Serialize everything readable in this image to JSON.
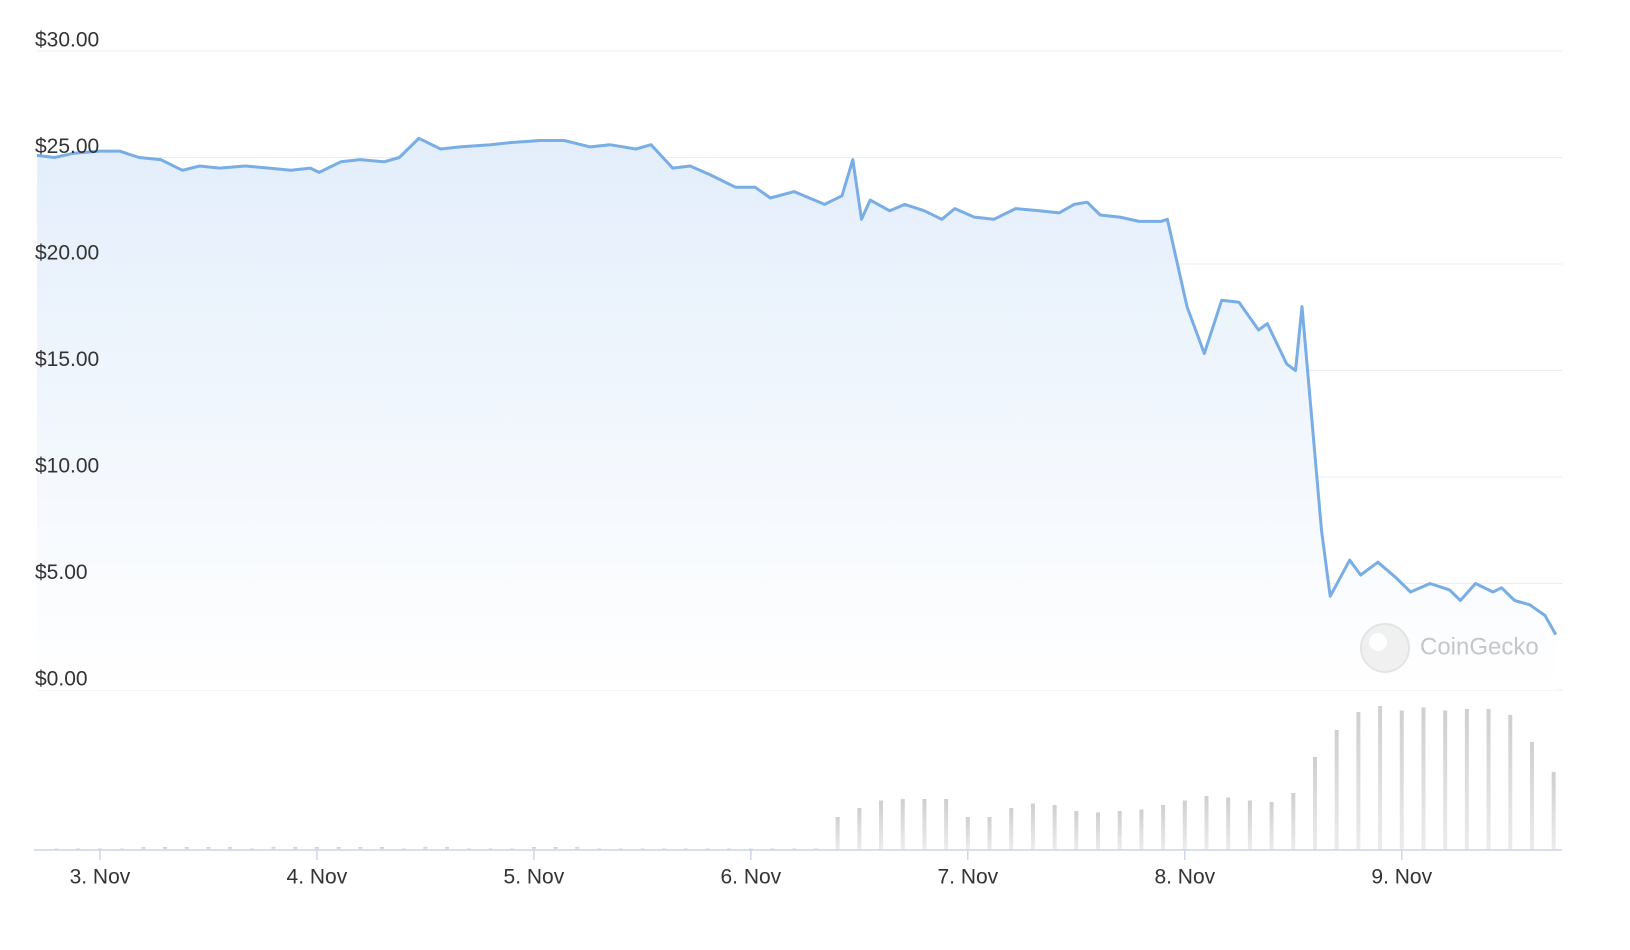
{
  "chart_data": [
    {
      "type": "line",
      "watermark": "CoinGecko",
      "color": "#78ade6",
      "grid": true,
      "x": [
        2.71,
        2.79,
        2.88,
        3.0,
        3.09,
        3.18,
        3.28,
        3.38,
        3.46,
        3.55,
        3.67,
        3.78,
        3.88,
        3.97,
        4.01,
        4.11,
        4.2,
        4.31,
        4.38,
        4.47,
        4.57,
        4.66,
        4.8,
        4.89,
        5.03,
        5.14,
        5.26,
        5.35,
        5.47,
        5.54,
        5.64,
        5.72,
        5.81,
        5.93,
        6.02,
        6.09,
        6.2,
        6.27,
        6.34,
        6.42,
        6.47,
        6.51,
        6.55,
        6.64,
        6.71,
        6.8,
        6.88,
        6.94,
        7.03,
        7.12,
        7.22,
        7.33,
        7.42,
        7.49,
        7.55,
        7.61,
        7.7,
        7.79,
        7.89,
        7.92,
        8.01,
        8.09,
        8.17,
        8.25,
        8.34,
        8.38,
        8.47,
        8.51,
        8.54,
        8.63,
        8.67,
        8.76,
        8.81,
        8.89,
        8.97,
        9.04,
        9.13,
        9.22,
        9.27,
        9.34,
        9.42,
        9.46,
        9.52,
        9.59,
        9.66,
        9.71
      ],
      "values": [
        25.1,
        25.0,
        25.2,
        25.3,
        25.3,
        25.0,
        24.9,
        24.4,
        24.6,
        24.5,
        24.6,
        24.5,
        24.4,
        24.5,
        24.3,
        24.8,
        24.9,
        24.8,
        25.0,
        25.9,
        25.4,
        25.5,
        25.6,
        25.7,
        25.8,
        25.8,
        25.5,
        25.6,
        25.4,
        25.6,
        24.5,
        24.6,
        24.2,
        23.6,
        23.6,
        23.1,
        23.4,
        23.1,
        22.8,
        23.2,
        24.9,
        22.1,
        23.0,
        22.5,
        22.8,
        22.5,
        22.1,
        22.6,
        22.2,
        22.1,
        22.6,
        22.5,
        22.4,
        22.8,
        22.9,
        22.3,
        22.2,
        22.0,
        22.0,
        22.1,
        18.0,
        15.8,
        18.3,
        18.2,
        16.9,
        17.2,
        15.3,
        15.0,
        18.0,
        7.5,
        4.4,
        6.1,
        5.4,
        6.0,
        5.3,
        4.6,
        5.0,
        4.7,
        4.2,
        5.0,
        4.6,
        4.8,
        4.2,
        4.0,
        3.5,
        2.6
      ],
      "xlim": [
        2.71,
        9.72
      ],
      "xticks": [
        {
          "value": 3,
          "label": "3. Nov"
        },
        {
          "value": 4,
          "label": "4. Nov"
        },
        {
          "value": 5,
          "label": "5. Nov"
        },
        {
          "value": 6,
          "label": "6. Nov"
        },
        {
          "value": 7,
          "label": "7. Nov"
        },
        {
          "value": 8,
          "label": "8. Nov"
        },
        {
          "value": 9,
          "label": "9. Nov"
        }
      ],
      "ylim": [
        0,
        30
      ],
      "yticks": [
        {
          "value": 0,
          "label": "$0.00"
        },
        {
          "value": 5,
          "label": "$5.00"
        },
        {
          "value": 10,
          "label": "$10.00"
        },
        {
          "value": 15,
          "label": "$15.00"
        },
        {
          "value": 20,
          "label": "$20.00"
        },
        {
          "value": 25,
          "label": "$25.00"
        },
        {
          "value": 30,
          "label": "$30.00"
        }
      ]
    },
    {
      "type": "bar",
      "color": "#d4d4d4",
      "x": [
        2.8,
        2.9,
        3.0,
        3.1,
        3.2,
        3.3,
        3.4,
        3.5,
        3.6,
        3.7,
        3.8,
        3.9,
        4.0,
        4.1,
        4.2,
        4.3,
        4.4,
        4.5,
        4.6,
        4.7,
        4.8,
        4.9,
        5.0,
        5.1,
        5.2,
        5.3,
        5.4,
        5.5,
        5.6,
        5.7,
        5.8,
        5.9,
        6.0,
        6.1,
        6.2,
        6.3,
        6.4,
        6.5,
        6.6,
        6.7,
        6.8,
        6.9,
        7.0,
        7.1,
        7.2,
        7.3,
        7.4,
        7.5,
        7.6,
        7.7,
        7.8,
        7.9,
        8.0,
        8.1,
        8.2,
        8.3,
        8.4,
        8.5,
        8.6,
        8.7,
        8.8,
        8.9,
        9.0,
        9.1,
        9.2,
        9.3,
        9.4,
        9.5,
        9.6,
        9.7
      ],
      "values": [
        1,
        1,
        1,
        1,
        2,
        2,
        2,
        2,
        2,
        1,
        2,
        2,
        2,
        2,
        2,
        2,
        1,
        2,
        2,
        1,
        1,
        1,
        2,
        2,
        2,
        1,
        1,
        1,
        1,
        1,
        1,
        1,
        1,
        1,
        1,
        1,
        22,
        28,
        33,
        34,
        34,
        34,
        22,
        22,
        28,
        31,
        30,
        26,
        25,
        26,
        27,
        30,
        33,
        36,
        35,
        33,
        32,
        38,
        62,
        80,
        92,
        96,
        93,
        95,
        93,
        94,
        94,
        90,
        72,
        52
      ],
      "ylim": [
        0,
        100
      ]
    }
  ]
}
